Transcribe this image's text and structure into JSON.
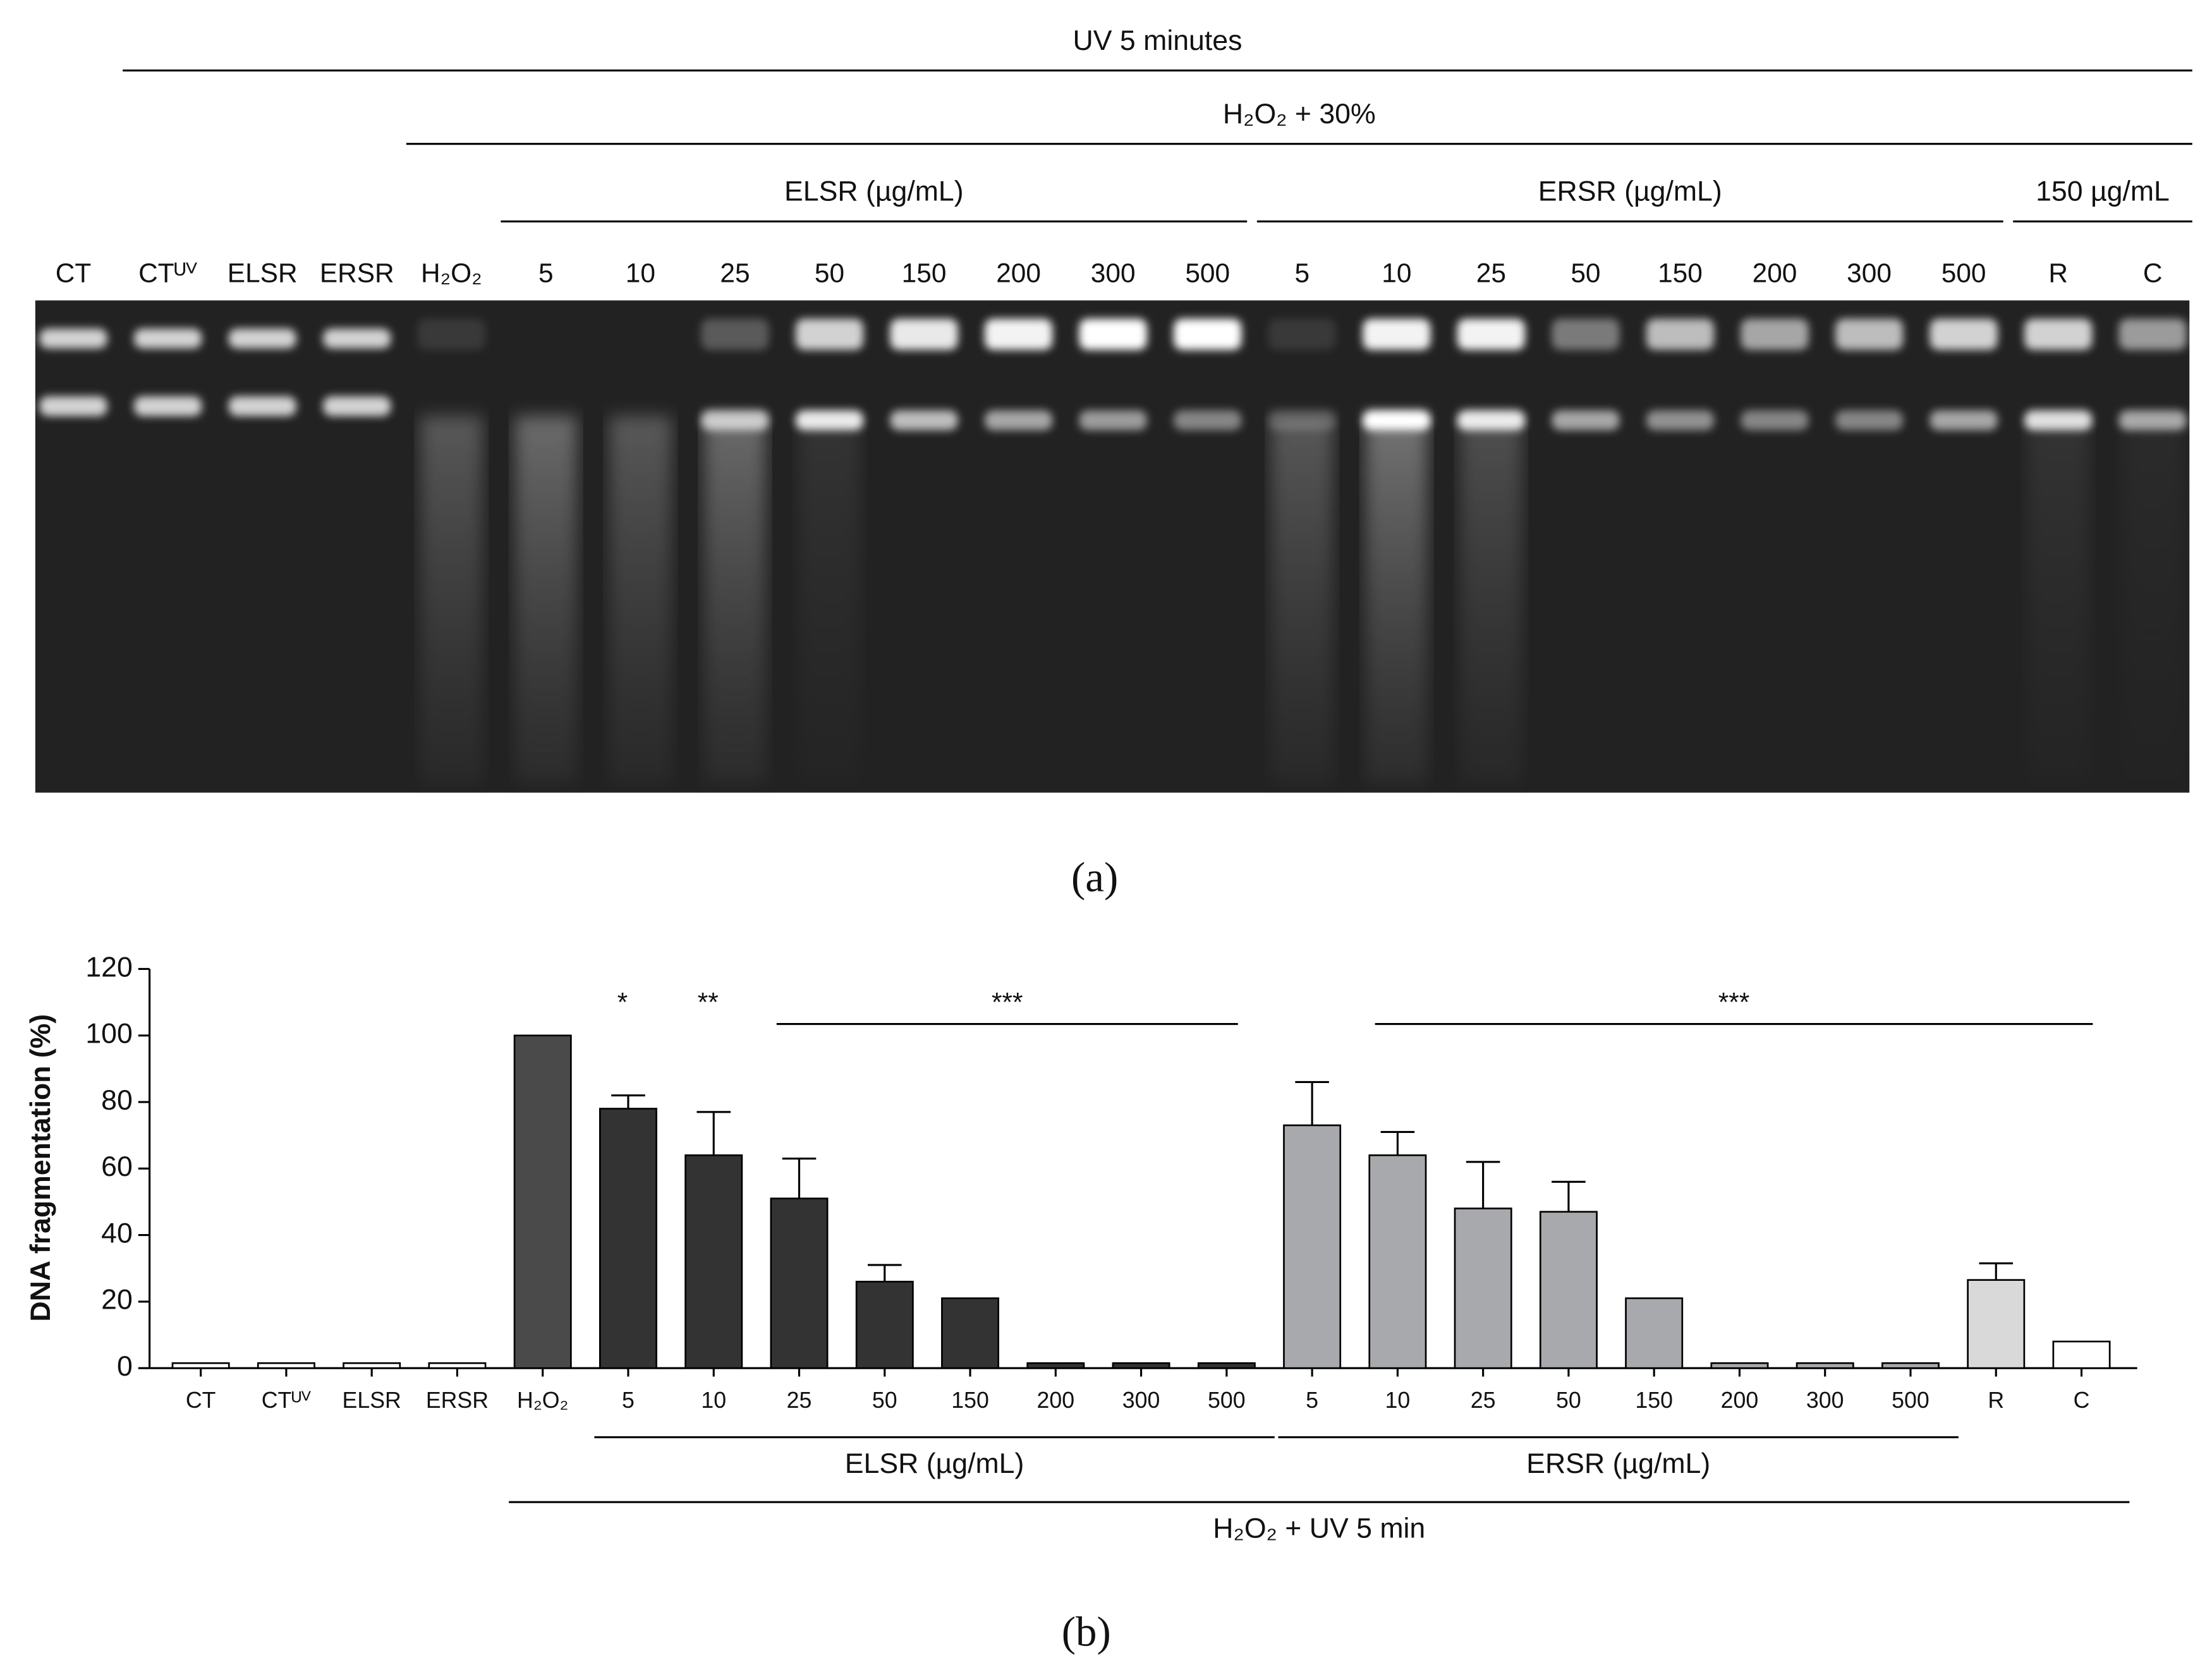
{
  "panel_a": {
    "label": "(a)",
    "headers": [
      {
        "text": "UV 5 minutes",
        "span": [
          1,
          22
        ]
      },
      {
        "text": "H₂O₂ + 30%",
        "span": [
          4,
          22
        ]
      },
      {
        "text": "ELSR (µg/mL)",
        "span": [
          5,
          12
        ]
      },
      {
        "text": "ERSR (µg/mL)",
        "span": [
          13,
          20
        ]
      },
      {
        "text": "150 µg/mL",
        "span": [
          21,
          22
        ]
      }
    ],
    "lanes": [
      "CT",
      "CTᵁⱽ",
      "ELSR",
      "ERSR",
      "H₂O₂",
      "5",
      "10",
      "25",
      "50",
      "150",
      "200",
      "300",
      "500",
      "5",
      "10",
      "25",
      "50",
      "150",
      "200",
      "300",
      "500",
      "R",
      "C"
    ]
  },
  "panel_b": {
    "label": "(b)"
  },
  "chart_data": {
    "type": "bar",
    "ylabel": "DNA fragmentation (%)",
    "categories": [
      "CT",
      "CTᵁⱽ",
      "ELSR",
      "ERSR",
      "H₂O₂",
      "5",
      "10",
      "25",
      "50",
      "150",
      "200",
      "300",
      "500",
      "5",
      "10",
      "25",
      "50",
      "150",
      "200",
      "300",
      "500",
      "R",
      "C"
    ],
    "values": [
      1.5,
      1.5,
      1.5,
      1.5,
      100,
      78,
      64,
      51,
      26,
      21,
      1.5,
      1.5,
      1.5,
      73,
      64,
      48,
      47,
      21,
      1.5,
      1.5,
      1.5,
      26.5,
      8
    ],
    "errors": [
      null,
      null,
      null,
      null,
      null,
      4,
      13,
      12,
      5,
      null,
      null,
      null,
      null,
      13,
      7,
      14,
      9,
      null,
      null,
      null,
      null,
      5,
      null
    ],
    "colors": [
      "#ffffff",
      "#ffffff",
      "#ffffff",
      "#ffffff",
      "#4a4a4a",
      "#333333",
      "#333333",
      "#333333",
      "#333333",
      "#333333",
      "#333333",
      "#333333",
      "#333333",
      "#a7a9ac",
      "#a7a9ac",
      "#a7a9ac",
      "#a7a9ac",
      "#a7a9ac",
      "#a7a9ac",
      "#a7a9ac",
      "#a7a9ac",
      "#d9d9d9",
      "#ffffff"
    ],
    "ylim": [
      0,
      120
    ],
    "yticks": [
      0,
      20,
      40,
      60,
      80,
      100,
      120
    ],
    "significance": [
      {
        "text": "*",
        "span": [
          5,
          5
        ]
      },
      {
        "text": "**",
        "span": [
          6,
          6
        ]
      },
      {
        "text": "***",
        "span": [
          7,
          12
        ]
      },
      {
        "text": "***",
        "span": [
          14,
          22
        ]
      }
    ],
    "groups": [
      {
        "text": "ELSR (µg/mL)",
        "span": [
          5,
          12
        ]
      },
      {
        "text": "ERSR (µg/mL)",
        "span": [
          13,
          20
        ]
      },
      {
        "text": "H₂O₂ + UV 5 min",
        "span": [
          4,
          22
        ]
      }
    ]
  }
}
